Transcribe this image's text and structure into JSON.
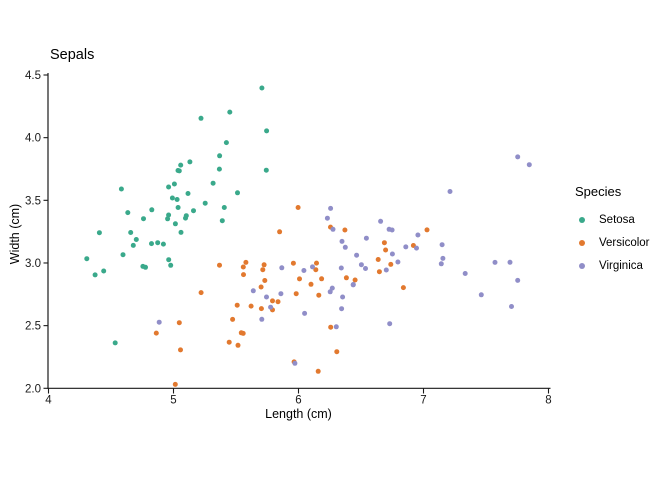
{
  "chart_data": {
    "type": "scatter",
    "title": "Sepals",
    "xlabel": "Length (cm)",
    "ylabel": "Width (cm)",
    "xlim": [
      4,
      8
    ],
    "ylim": [
      2.0,
      4.5
    ],
    "xtick_values": [
      4,
      5,
      6,
      7,
      8
    ],
    "xtick_labels": [
      "4",
      "5",
      "6",
      "7",
      "8"
    ],
    "ytick_values": [
      2.0,
      2.5,
      3.0,
      3.5,
      4.0,
      4.5
    ],
    "ytick_labels": [
      "2.0",
      "2.5",
      "3.0",
      "3.5",
      "4.0",
      "4.5"
    ],
    "grid": false,
    "background": "#ffffff",
    "axis_color": "#1a1a1a",
    "legend_title": "Species",
    "legend_position": "right",
    "series": [
      {
        "name": "Setosa",
        "color": "#3aa98b",
        "points": [
          [
            5.1,
            3.5
          ],
          [
            4.9,
            3.0
          ],
          [
            4.7,
            3.2
          ],
          [
            4.6,
            3.1
          ],
          [
            5.0,
            3.6
          ],
          [
            5.4,
            3.9
          ],
          [
            4.6,
            3.4
          ],
          [
            5.0,
            3.4
          ],
          [
            4.4,
            2.9
          ],
          [
            4.9,
            3.1
          ],
          [
            5.4,
            3.7
          ],
          [
            4.8,
            3.4
          ],
          [
            4.8,
            3.0
          ],
          [
            4.3,
            3.0
          ],
          [
            5.8,
            4.0
          ],
          [
            5.7,
            4.4
          ],
          [
            5.4,
            3.9
          ],
          [
            5.1,
            3.5
          ],
          [
            5.7,
            3.8
          ],
          [
            5.1,
            3.8
          ],
          [
            5.4,
            3.4
          ],
          [
            5.1,
            3.7
          ],
          [
            4.6,
            3.6
          ],
          [
            5.1,
            3.3
          ],
          [
            4.8,
            3.4
          ],
          [
            5.0,
            3.0
          ],
          [
            5.0,
            3.4
          ],
          [
            5.2,
            3.5
          ],
          [
            5.2,
            3.4
          ],
          [
            4.7,
            3.2
          ],
          [
            4.8,
            3.1
          ],
          [
            5.4,
            3.4
          ],
          [
            5.2,
            4.1
          ],
          [
            5.5,
            4.2
          ],
          [
            4.9,
            3.1
          ],
          [
            5.0,
            3.2
          ],
          [
            5.5,
            3.5
          ],
          [
            4.9,
            3.6
          ],
          [
            4.4,
            3.0
          ],
          [
            5.1,
            3.4
          ],
          [
            5.0,
            3.5
          ],
          [
            4.5,
            2.3
          ],
          [
            4.4,
            3.2
          ],
          [
            5.0,
            3.5
          ],
          [
            5.1,
            3.8
          ],
          [
            4.8,
            3.0
          ],
          [
            5.1,
            3.8
          ],
          [
            4.6,
            3.2
          ],
          [
            5.3,
            3.7
          ],
          [
            5.0,
            3.3
          ]
        ]
      },
      {
        "name": "Versicolor",
        "color": "#e2792f",
        "points": [
          [
            7.0,
            3.2
          ],
          [
            6.4,
            3.2
          ],
          [
            6.9,
            3.1
          ],
          [
            5.5,
            2.3
          ],
          [
            6.5,
            2.8
          ],
          [
            5.7,
            2.8
          ],
          [
            6.3,
            3.3
          ],
          [
            4.9,
            2.4
          ],
          [
            6.6,
            2.9
          ],
          [
            5.2,
            2.7
          ],
          [
            5.0,
            2.0
          ],
          [
            5.9,
            3.0
          ],
          [
            6.0,
            2.2
          ],
          [
            6.1,
            2.9
          ],
          [
            5.6,
            2.9
          ],
          [
            6.7,
            3.1
          ],
          [
            5.6,
            3.0
          ],
          [
            5.8,
            2.7
          ],
          [
            6.2,
            2.2
          ],
          [
            5.6,
            2.5
          ],
          [
            5.9,
            3.2
          ],
          [
            6.1,
            2.8
          ],
          [
            6.3,
            2.5
          ],
          [
            6.1,
            2.8
          ],
          [
            6.4,
            2.9
          ],
          [
            6.6,
            3.0
          ],
          [
            6.8,
            2.8
          ],
          [
            6.7,
            3.0
          ],
          [
            6.0,
            2.9
          ],
          [
            5.7,
            2.6
          ],
          [
            5.5,
            2.4
          ],
          [
            5.5,
            2.4
          ],
          [
            5.8,
            2.7
          ],
          [
            6.0,
            2.7
          ],
          [
            5.4,
            3.0
          ],
          [
            6.0,
            3.4
          ],
          [
            6.7,
            3.1
          ],
          [
            6.3,
            2.3
          ],
          [
            5.6,
            3.0
          ],
          [
            5.5,
            2.5
          ],
          [
            5.5,
            2.6
          ],
          [
            6.1,
            3.0
          ],
          [
            5.8,
            2.6
          ],
          [
            5.0,
            2.3
          ],
          [
            5.6,
            2.7
          ],
          [
            5.7,
            3.0
          ],
          [
            5.7,
            2.9
          ],
          [
            6.2,
            2.9
          ],
          [
            5.1,
            2.5
          ],
          [
            5.7,
            2.8
          ]
        ]
      },
      {
        "name": "Virginica",
        "color": "#908ec8",
        "points": [
          [
            6.3,
            3.3
          ],
          [
            5.8,
            2.7
          ],
          [
            7.1,
            3.0
          ],
          [
            6.3,
            2.9
          ],
          [
            6.5,
            3.0
          ],
          [
            7.6,
            3.0
          ],
          [
            4.9,
            2.5
          ],
          [
            7.3,
            2.9
          ],
          [
            6.7,
            2.5
          ],
          [
            7.2,
            3.6
          ],
          [
            6.5,
            3.2
          ],
          [
            6.4,
            2.7
          ],
          [
            6.8,
            3.0
          ],
          [
            5.7,
            2.5
          ],
          [
            5.8,
            2.8
          ],
          [
            6.4,
            3.2
          ],
          [
            6.5,
            3.0
          ],
          [
            7.7,
            3.8
          ],
          [
            7.7,
            2.6
          ],
          [
            6.0,
            2.2
          ],
          [
            6.9,
            3.2
          ],
          [
            5.6,
            2.8
          ],
          [
            7.7,
            2.8
          ],
          [
            6.3,
            2.7
          ],
          [
            6.7,
            3.3
          ],
          [
            7.2,
            3.2
          ],
          [
            6.2,
            2.8
          ],
          [
            6.1,
            3.0
          ],
          [
            6.4,
            2.8
          ],
          [
            7.2,
            3.0
          ],
          [
            7.4,
            2.8
          ],
          [
            7.9,
            3.8
          ],
          [
            6.4,
            2.8
          ],
          [
            6.3,
            2.8
          ],
          [
            6.1,
            2.6
          ],
          [
            7.7,
            3.0
          ],
          [
            6.3,
            3.4
          ],
          [
            6.4,
            3.1
          ],
          [
            6.0,
            3.0
          ],
          [
            6.9,
            3.1
          ],
          [
            6.7,
            3.1
          ],
          [
            6.9,
            3.1
          ],
          [
            5.8,
            2.7
          ],
          [
            6.8,
            3.2
          ],
          [
            6.7,
            3.3
          ],
          [
            6.7,
            3.0
          ],
          [
            6.3,
            2.5
          ],
          [
            6.5,
            3.0
          ],
          [
            6.2,
            3.4
          ],
          [
            5.9,
            3.0
          ]
        ]
      }
    ]
  }
}
